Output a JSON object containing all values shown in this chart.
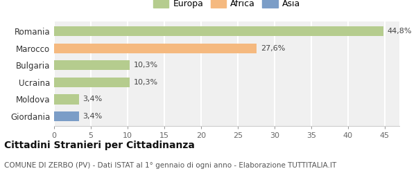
{
  "categories": [
    "Giordania",
    "Moldova",
    "Ucraina",
    "Bulgaria",
    "Marocco",
    "Romania"
  ],
  "values": [
    3.4,
    3.4,
    10.3,
    10.3,
    27.6,
    44.8
  ],
  "labels": [
    "3,4%",
    "3,4%",
    "10,3%",
    "10,3%",
    "27,6%",
    "44,8%"
  ],
  "colors": [
    "#7b9dc7",
    "#b5cc8e",
    "#b5cc8e",
    "#b5cc8e",
    "#f5b97f",
    "#b5cc8e"
  ],
  "legend": [
    {
      "label": "Europa",
      "color": "#b5cc8e"
    },
    {
      "label": "Africa",
      "color": "#f5b97f"
    },
    {
      "label": "Asia",
      "color": "#7b9dc7"
    }
  ],
  "xlim": [
    0,
    47
  ],
  "xticks": [
    0,
    5,
    10,
    15,
    20,
    25,
    30,
    35,
    40,
    45
  ],
  "title": "Cittadini Stranieri per Cittadinanza",
  "subtitle": "COMUNE DI ZERBO (PV) - Dati ISTAT al 1° gennaio di ogni anno - Elaborazione TUTTITALIA.IT",
  "background_color": "#ffffff",
  "bar_background": "#f5f5f5",
  "title_fontsize": 10,
  "subtitle_fontsize": 7.5,
  "bar_height": 0.58,
  "label_fontsize": 8,
  "tick_fontsize": 8,
  "ytick_fontsize": 8.5,
  "legend_fontsize": 9
}
